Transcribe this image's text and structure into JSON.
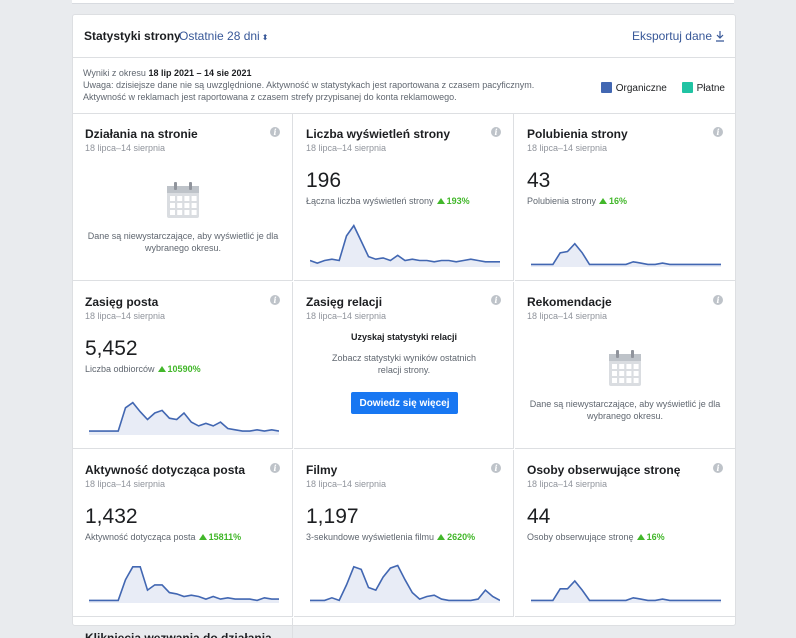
{
  "header": {
    "title": "Statystyki strony",
    "range": "Ostatnie 28 dni",
    "export": "Eksportuj dane"
  },
  "info": {
    "prefix": "Wyniki z okresu ",
    "range_bold": "18 lip 2021 – 14 sie 2021",
    "line2": "Uwaga: dzisiejsze dane nie są uwzględnione. Aktywność w statystykach jest raportowana z czasem pacyficznym.",
    "line3": "Aktywność w reklamach jest raportowana z czasem strefy przypisanej do konta reklamowego."
  },
  "legend": {
    "organic_label": "Organiczne",
    "organic_color": "#4267b2",
    "paid_label": "Płatne",
    "paid_color": "#20c3a3"
  },
  "info_icon_glyph": "i",
  "cards": [
    {
      "title": "Działania na stronie",
      "subtitle": "18 lipca–14 sierpnia",
      "insufficient": "Dane są niewystarczające, aby wyświetlić je dla wybranego okresu."
    },
    {
      "title": "Liczba wyświetleń strony",
      "subtitle": "18 lipca–14 sierpnia",
      "value": "196",
      "label": "Łączna liczba wyświetleń strony",
      "change": "193%",
      "spark": [
        5,
        3,
        5,
        6,
        5,
        24,
        32,
        20,
        8,
        6,
        7,
        5,
        9,
        5,
        6,
        5,
        5,
        4,
        5,
        5,
        4,
        5,
        6,
        5,
        4,
        4,
        4
      ]
    },
    {
      "title": "Polubienia strony",
      "subtitle": "18 lipca–14 sierpnia",
      "value": "43",
      "label": "Polubienia strony",
      "change": "16%",
      "spark": [
        2,
        2,
        2,
        2,
        11,
        12,
        18,
        11,
        2,
        2,
        2,
        2,
        2,
        2,
        4,
        3,
        2,
        2,
        3,
        2,
        2,
        2,
        2,
        2,
        2,
        2,
        2
      ]
    },
    {
      "title": "Zasięg posta",
      "subtitle": "18 lipca–14 sierpnia",
      "value": "5,452",
      "label": "Liczba odbiorców",
      "change": "10590%",
      "spark": [
        3,
        3,
        3,
        3,
        3,
        21,
        25,
        18,
        12,
        17,
        19,
        13,
        12,
        17,
        10,
        7,
        9,
        7,
        10,
        5,
        4,
        3,
        3,
        4,
        3,
        4,
        3
      ]
    },
    {
      "title": "Zasięg relacji",
      "subtitle": "18 lipca–14 sierpnia",
      "cta_title": "Uzyskaj statystyki relacji",
      "cta_desc": "Zobacz statystyki wyników ostatnich relacji strony.",
      "cta_button": "Dowiedz się więcej"
    },
    {
      "title": "Rekomendacje",
      "subtitle": "18 lipca–14 sierpnia",
      "insufficient": "Dane są niewystarczające, aby wyświetlić je dla wybranego okresu."
    },
    {
      "title": "Aktywność dotycząca posta",
      "subtitle": "18 lipca–14 sierpnia",
      "value": "1,432",
      "label": "Aktywność dotycząca posta",
      "change": "15811%",
      "spark": [
        2,
        2,
        2,
        2,
        2,
        18,
        28,
        28,
        10,
        14,
        14,
        8,
        7,
        5,
        6,
        5,
        3,
        5,
        3,
        4,
        3,
        3,
        3,
        2,
        4,
        3,
        3
      ]
    },
    {
      "title": "Filmy",
      "subtitle": "18 lipca–14 sierpnia",
      "value": "1,197",
      "label": "3-sekundowe wyświetlenia filmu",
      "change": "2620%",
      "spark": [
        2,
        2,
        2,
        4,
        2,
        14,
        28,
        26,
        12,
        10,
        20,
        27,
        29,
        18,
        8,
        3,
        5,
        6,
        3,
        2,
        2,
        2,
        2,
        3,
        10,
        5,
        2
      ]
    },
    {
      "title": "Osoby obserwujące stronę",
      "subtitle": "18 lipca–14 sierpnia",
      "value": "44",
      "label": "Osoby obserwujące stronę",
      "change": "16%",
      "spark": [
        2,
        2,
        2,
        2,
        11,
        11,
        17,
        10,
        2,
        2,
        2,
        2,
        2,
        2,
        4,
        3,
        2,
        2,
        3,
        2,
        2,
        2,
        2,
        2,
        2,
        2,
        2
      ]
    },
    {
      "title": "Kliknięcia wezwania do działania",
      "partial": true
    }
  ]
}
